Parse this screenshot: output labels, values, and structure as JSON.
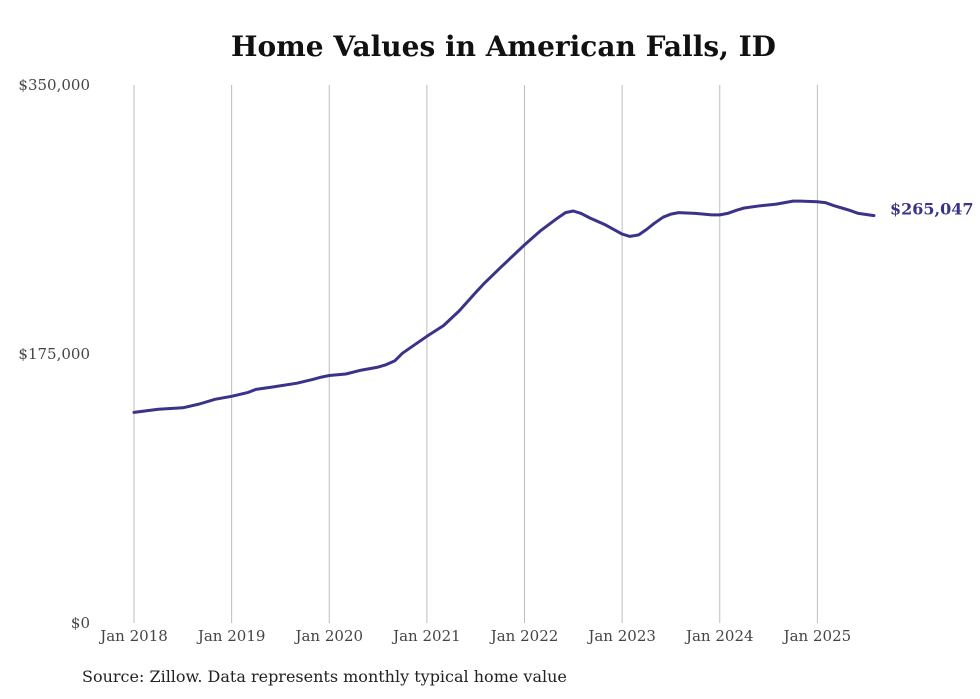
{
  "chart_data": {
    "type": "line",
    "title": "Home Values in American Falls, ID",
    "xlabel": "",
    "ylabel": "",
    "ylim": [
      0,
      350000
    ],
    "y_ticks": [
      {
        "value": 0,
        "label": "$0"
      },
      {
        "value": 175000,
        "label": "$175,000"
      },
      {
        "value": 350000,
        "label": "$350,000"
      }
    ],
    "x_ticks": [
      {
        "value": 2018.0,
        "label": "Jan 2018"
      },
      {
        "value": 2019.0,
        "label": "Jan 2019"
      },
      {
        "value": 2020.0,
        "label": "Jan 2020"
      },
      {
        "value": 2021.0,
        "label": "Jan 2021"
      },
      {
        "value": 2022.0,
        "label": "Jan 2022"
      },
      {
        "value": 2023.0,
        "label": "Jan 2023"
      },
      {
        "value": 2024.0,
        "label": "Jan 2024"
      },
      {
        "value": 2025.0,
        "label": "Jan 2025"
      }
    ],
    "xlim": [
      2018.0,
      2025.58
    ],
    "grid": "vertical",
    "series": [
      {
        "name": "Typical home value",
        "color": "#3a3389",
        "x": [
          2018.0,
          2018.25,
          2018.5,
          2018.67,
          2018.83,
          2019.0,
          2019.17,
          2019.25,
          2019.42,
          2019.67,
          2019.83,
          2019.92,
          2020.0,
          2020.17,
          2020.33,
          2020.5,
          2020.58,
          2020.67,
          2020.75,
          2020.92,
          2021.0,
          2021.17,
          2021.33,
          2021.5,
          2021.58,
          2021.75,
          2022.0,
          2022.17,
          2022.33,
          2022.42,
          2022.5,
          2022.58,
          2022.67,
          2022.83,
          2023.0,
          2023.08,
          2023.17,
          2023.25,
          2023.33,
          2023.42,
          2023.5,
          2023.58,
          2023.75,
          2023.92,
          2024.0,
          2024.08,
          2024.17,
          2024.25,
          2024.42,
          2024.58,
          2024.75,
          2024.83,
          2025.0,
          2025.08,
          2025.17,
          2025.25,
          2025.33,
          2025.42,
          2025.58
        ],
        "values": [
          137000,
          139000,
          140000,
          142500,
          145500,
          147500,
          150000,
          152000,
          153500,
          156000,
          158500,
          160000,
          161000,
          162000,
          164500,
          166500,
          168000,
          170500,
          175500,
          183000,
          186500,
          193500,
          203000,
          215000,
          220500,
          231000,
          246000,
          255500,
          263000,
          267000,
          268000,
          266500,
          263500,
          259000,
          253000,
          251500,
          252500,
          256000,
          260000,
          264000,
          266000,
          267000,
          266500,
          265500,
          265500,
          266500,
          268500,
          270000,
          271500,
          272500,
          274500,
          274500,
          274000,
          273500,
          271500,
          270000,
          268500,
          266500,
          265047
        ]
      }
    ],
    "end_label": "$265,047",
    "source": "Source: Zillow. Data represents monthly typical home value"
  }
}
